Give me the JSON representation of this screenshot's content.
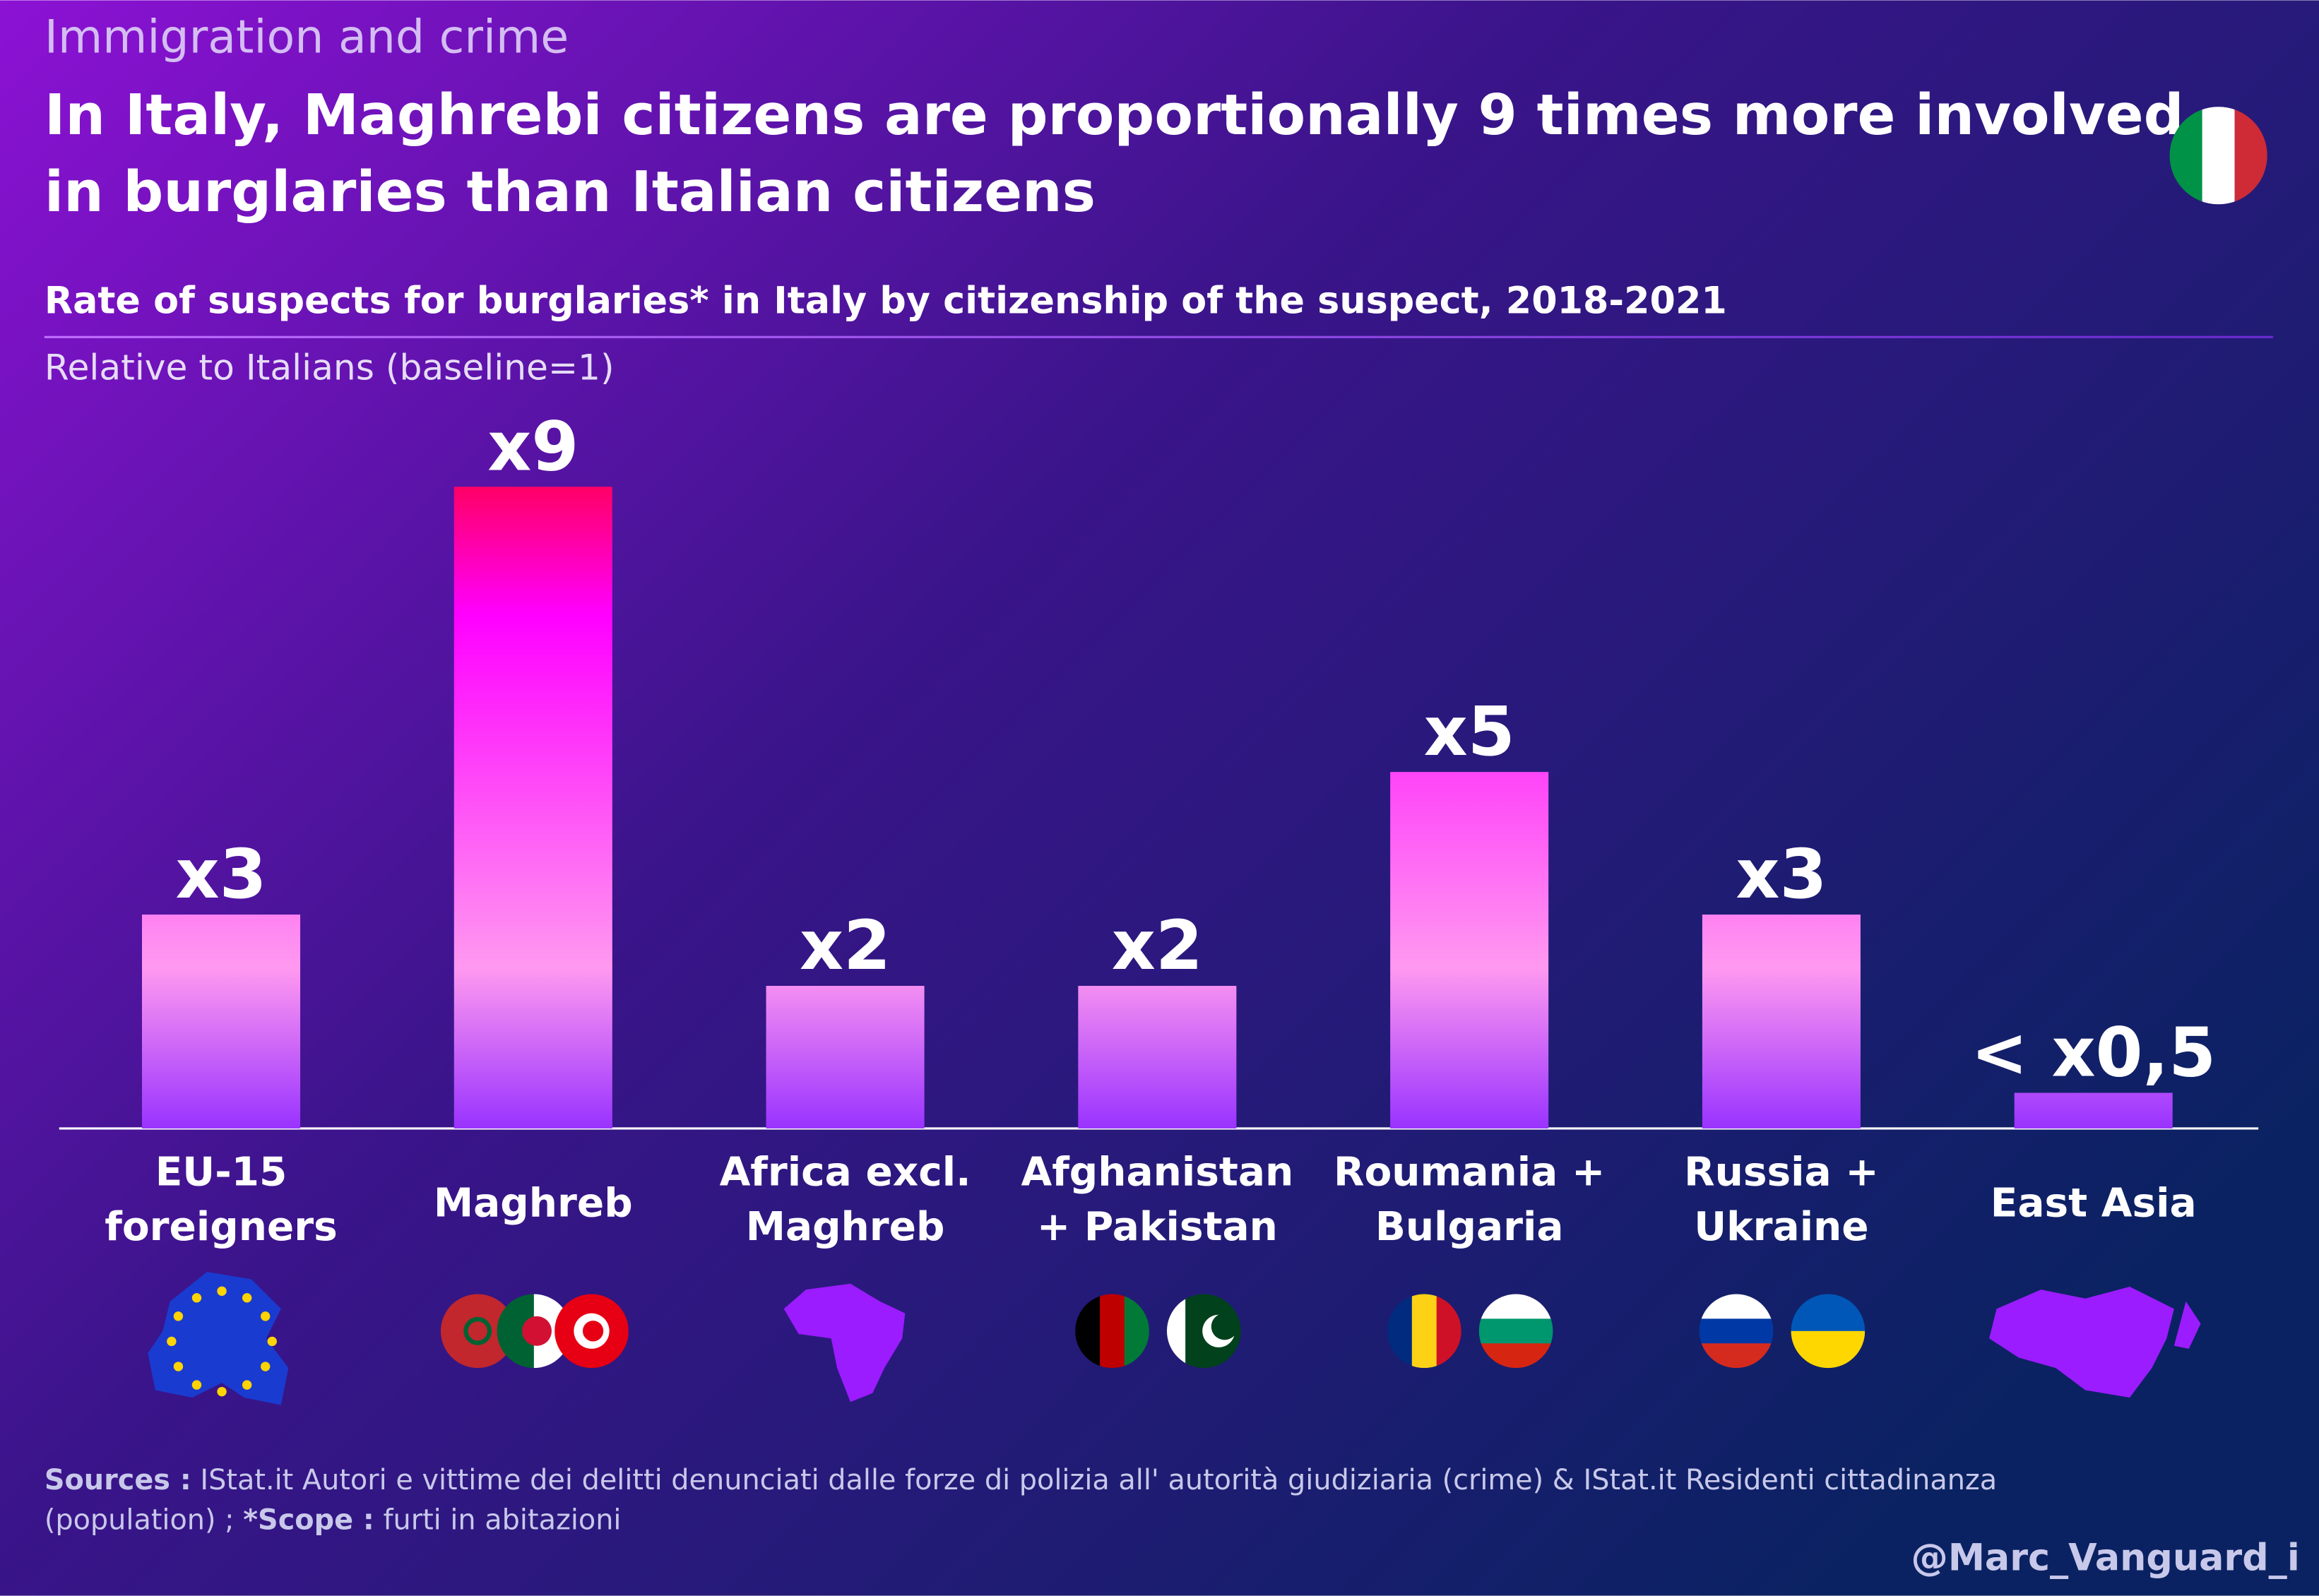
{
  "kicker": "Immigration and crime",
  "headline": [
    "In Italy, Maghrebi citizens are proportionally 9 times more involved",
    "in burglaries than Italian citizens"
  ],
  "chart_data": {
    "type": "bar",
    "title": "Rate of suspects for burglaries* in Italy by citizenship of the suspect, 2018-2021",
    "subtitle": "Relative to Italians (baseline=1)",
    "categories": [
      [
        "EU-15",
        "foreigners"
      ],
      [
        "Maghreb"
      ],
      [
        "Africa excl.",
        "Maghreb"
      ],
      [
        "Afghanistan",
        "+ Pakistan"
      ],
      [
        "Roumania +",
        "Bulgaria"
      ],
      [
        "Russia +",
        "Ukraine"
      ],
      [
        "East Asia"
      ]
    ],
    "values": [
      3,
      9,
      2,
      2,
      5,
      3,
      0.5
    ],
    "value_labels": [
      "x3",
      "x9",
      "x2",
      "x2",
      "x5",
      "x3",
      "< x0,5"
    ],
    "color": [
      "#ff0066",
      "#ff00ff",
      "#ff99f0",
      "#9933ff"
    ]
  },
  "footer": {
    "sources_label": "Sources :",
    "sources_text": "IStat.it Autori e vittime dei delitti denunciati dalle forze di polizia all' autorità giudiziaria (crime) & IStat.it Residenti cittadinanza (population) ;",
    "scope_label": "*Scope :",
    "scope_text": "furti in abitazioni",
    "credit": "@Marc_Vanguard_i"
  }
}
